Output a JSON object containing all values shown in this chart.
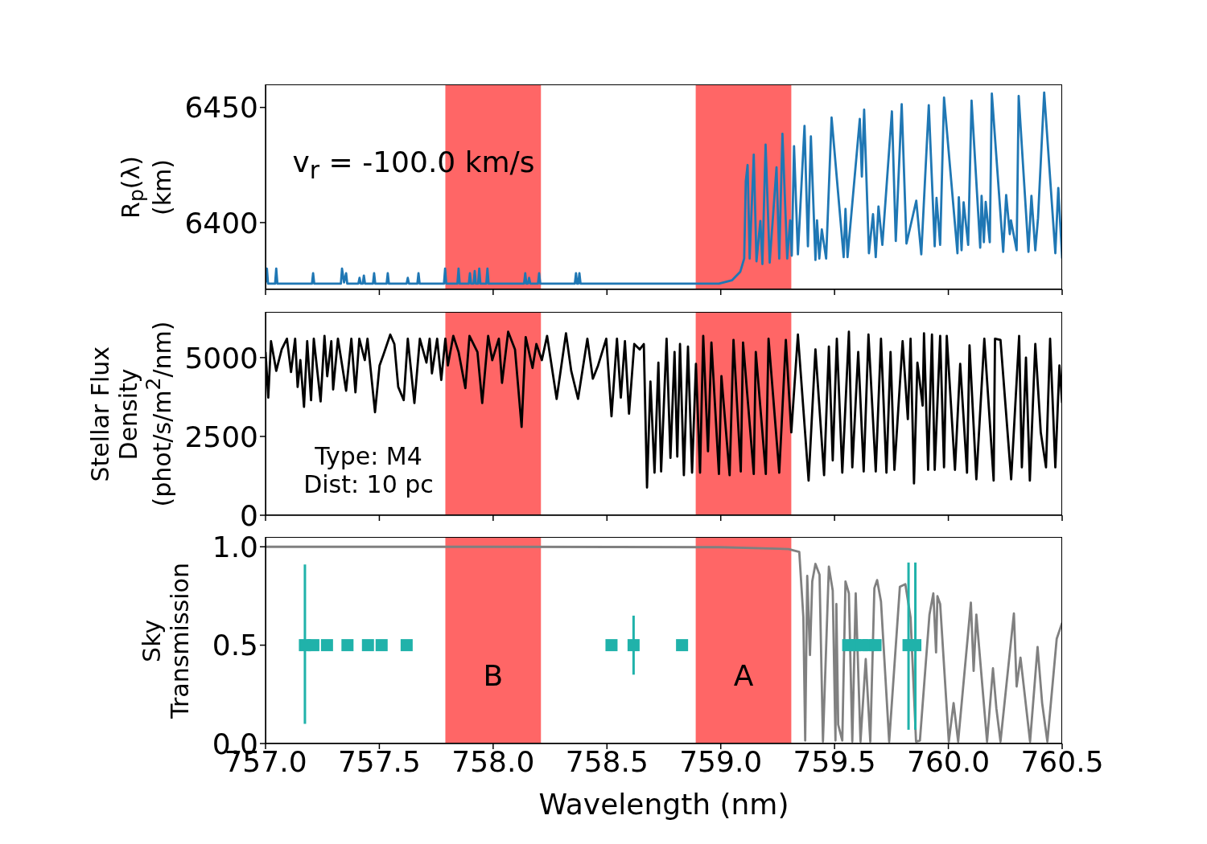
{
  "chart_data": [
    {
      "type": "line",
      "ylabel": "R$_{p}$(λ)\n(km)",
      "annotations": [
        "v$_{r}$ = -100.0 km/s"
      ],
      "xlim": [
        757,
        760.5
      ],
      "xticks": [
        {
          "value": 757,
          "label": null
        },
        {
          "value": 757.5,
          "label": null
        },
        {
          "value": 758,
          "label": null
        },
        {
          "value": 758.5,
          "label": null
        },
        {
          "value": 759,
          "label": null
        },
        {
          "value": 759.5,
          "label": null
        },
        {
          "value": 760,
          "label": null
        },
        {
          "value": 760.5,
          "label": null
        }
      ],
      "ylim": [
        6371,
        6460
      ],
      "yticks": [
        6400,
        6450
      ],
      "tick_labels": "y",
      "bands": [
        {
          "axis": "x",
          "from": 757.79,
          "to": 758.21,
          "color": "#ff6666"
        },
        {
          "axis": "x",
          "from": 758.89,
          "to": 759.31,
          "color": "#ff6666"
        }
      ],
      "series": [
        {
          "color": "#1f77b4",
          "marker": "none",
          "x": [
            757.0,
            757.006,
            757.011,
            757.042,
            757.047,
            757.052,
            757.204,
            757.209,
            757.214,
            757.331,
            757.336,
            757.345,
            757.354,
            757.359,
            757.408,
            757.413,
            757.418,
            757.427,
            757.432,
            757.437,
            757.472,
            757.477,
            757.482,
            757.532,
            757.537,
            757.542,
            757.62,
            757.625,
            757.63,
            757.667,
            757.672,
            757.677,
            757.784,
            757.789,
            757.794,
            757.843,
            757.848,
            757.853,
            757.893,
            757.898,
            757.903,
            757.914,
            757.919,
            757.924,
            757.934,
            757.939,
            757.944,
            757.97,
            757.975,
            757.98,
            758.136,
            758.141,
            758.146,
            758.153,
            758.158,
            758.163,
            758.197,
            758.202,
            758.207,
            758.359,
            758.364,
            758.369,
            758.374,
            758.379,
            758.384,
            758.9,
            758.992,
            759.05,
            759.086,
            759.103,
            759.11,
            759.118,
            759.127,
            759.145,
            759.157,
            759.174,
            759.183,
            759.197,
            759.215,
            759.245,
            759.257,
            759.271,
            759.292,
            759.305,
            759.312,
            759.322,
            759.339,
            759.368,
            759.383,
            759.396,
            759.416,
            759.423,
            759.433,
            759.444,
            759.463,
            759.487,
            759.54,
            759.548,
            759.557,
            759.611,
            759.62,
            759.63,
            759.651,
            759.669,
            759.681,
            759.693,
            759.71,
            759.752,
            759.769,
            759.795,
            759.816,
            759.859,
            759.881,
            759.914,
            759.94,
            759.948,
            759.964,
            759.981,
            760.04,
            760.046,
            760.058,
            760.067,
            760.087,
            760.102,
            760.14,
            760.146,
            760.156,
            760.164,
            760.182,
            760.191,
            760.241,
            760.254,
            760.27,
            760.275,
            760.3,
            760.309,
            760.352,
            760.365,
            760.382,
            760.394,
            760.421,
            760.47,
            760.483,
            760.5
          ],
          "values": [
            6374,
            6380,
            6373.5,
            6373.5,
            6380,
            6373.5,
            6373.5,
            6378,
            6373.5,
            6373.5,
            6380,
            6374,
            6378,
            6373.5,
            6373.5,
            6376,
            6373.5,
            6373.5,
            6377,
            6373.5,
            6373.5,
            6378,
            6373.5,
            6373.5,
            6378,
            6373.5,
            6373.5,
            6376,
            6373.5,
            6373.5,
            6378,
            6373.5,
            6373.5,
            6380,
            6373.5,
            6373.5,
            6380,
            6373.5,
            6373.5,
            6378,
            6373.5,
            6373.5,
            6379,
            6373.5,
            6373.5,
            6380,
            6373.5,
            6373.5,
            6380,
            6373.5,
            6373.5,
            6378,
            6373.5,
            6373.5,
            6376,
            6373.5,
            6373.5,
            6378,
            6373.5,
            6373.5,
            6378,
            6373.5,
            6373.5,
            6378,
            6373.5,
            6373.5,
            6373.5,
            6375,
            6378.7,
            6384.4,
            6418,
            6425,
            6384.4,
            6429.5,
            6383.2,
            6400.7,
            6382,
            6433.9,
            6382.6,
            6424,
            6384.4,
            6438.6,
            6384.4,
            6401,
            6385.6,
            6433.2,
            6386.2,
            6442,
            6389.7,
            6437.4,
            6383.8,
            6401,
            6384.4,
            6397,
            6384.4,
            6445.6,
            6385,
            6405.9,
            6385,
            6445,
            6420,
            6449,
            6386.7,
            6403.7,
            6385,
            6407,
            6390.3,
            6448.3,
            6392,
            6451.4,
            6390.9,
            6409.5,
            6386.2,
            6451,
            6389.7,
            6410.7,
            6390.3,
            6454.3,
            6386.7,
            6411,
            6388,
            6408.8,
            6390.3,
            6453,
            6389.1,
            6411.6,
            6391.5,
            6409,
            6391.5,
            6456,
            6387.3,
            6412,
            6395,
            6401,
            6388,
            6455,
            6387.3,
            6411.6,
            6388,
            6402,
            6456.5,
            6386.7,
            6415,
            6384.4
          ]
        }
      ]
    },
    {
      "type": "line",
      "ylabel": "Stellar Flux\nDensity\n(phot/s/m$^{2}$/nm)",
      "annotations": [
        "Type: M4\nDist: 10 pc"
      ],
      "xlim": [
        757,
        760.5
      ],
      "xticks": [
        {
          "value": 757,
          "label": null
        },
        {
          "value": 757.5,
          "label": null
        },
        {
          "value": 758,
          "label": null
        },
        {
          "value": 758.5,
          "label": null
        },
        {
          "value": 759,
          "label": null
        },
        {
          "value": 759.5,
          "label": null
        },
        {
          "value": 760,
          "label": null
        },
        {
          "value": 760.5,
          "label": null
        }
      ],
      "ylim": [
        0,
        6450
      ],
      "yticks": [
        0,
        2500,
        5000
      ],
      "tick_labels": "y",
      "bands": [
        {
          "axis": "x",
          "from": 757.79,
          "to": 758.21,
          "color": "#ff6666"
        },
        {
          "axis": "x",
          "from": 758.89,
          "to": 759.31,
          "color": "#ff6666"
        }
      ],
      "series": [
        {
          "color": "#000000",
          "marker": "none",
          "x": [
            757.0,
            757.012,
            757.024,
            757.047,
            757.071,
            757.094,
            757.112,
            757.13,
            757.141,
            757.153,
            757.169,
            757.183,
            757.2,
            757.212,
            757.242,
            757.259,
            757.271,
            757.289,
            757.297,
            757.318,
            757.354,
            757.377,
            757.395,
            757.412,
            757.436,
            757.448,
            757.481,
            757.501,
            757.518,
            757.548,
            757.566,
            757.583,
            757.607,
            757.625,
            757.654,
            757.678,
            757.707,
            757.721,
            757.731,
            757.754,
            757.772,
            757.79,
            757.801,
            757.825,
            757.848,
            757.878,
            757.896,
            757.931,
            757.952,
            757.978,
            757.996,
            758.025,
            758.039,
            758.066,
            758.096,
            758.125,
            758.143,
            758.173,
            758.19,
            758.214,
            758.237,
            758.279,
            758.32,
            758.343,
            758.373,
            758.414,
            758.438,
            758.461,
            758.497,
            758.52,
            758.544,
            758.561,
            758.579,
            758.597,
            758.62,
            758.644,
            758.662,
            758.676,
            758.691,
            758.709,
            758.726,
            758.738,
            758.762,
            758.779,
            758.797,
            758.809,
            758.821,
            758.838,
            758.856,
            758.874,
            758.891,
            758.909,
            758.923,
            758.944,
            758.959,
            758.992,
            759.003,
            759.039,
            759.056,
            759.088,
            759.098,
            759.145,
            759.154,
            759.198,
            759.21,
            759.257,
            759.286,
            759.31,
            759.339,
            759.386,
            759.416,
            759.454,
            759.475,
            759.492,
            759.51,
            759.534,
            759.563,
            759.578,
            759.604,
            759.628,
            759.649,
            759.681,
            759.704,
            759.728,
            759.746,
            759.763,
            759.799,
            759.822,
            759.834,
            759.849,
            759.864,
            759.887,
            759.893,
            759.911,
            759.928,
            759.94,
            759.964,
            759.981,
            759.993,
            760.029,
            760.052,
            760.082,
            760.093,
            760.123,
            760.158,
            760.199,
            760.205,
            760.229,
            760.276,
            760.311,
            760.323,
            760.341,
            760.358,
            760.382,
            760.406,
            760.429,
            760.447,
            760.47,
            760.488,
            760.5
          ],
          "values": [
            5180,
            3730,
            5520,
            4580,
            5260,
            5600,
            4540,
            5600,
            4070,
            4920,
            3440,
            5520,
            3650,
            5600,
            3610,
            5690,
            4410,
            5520,
            3990,
            5600,
            3950,
            5600,
            3900,
            5600,
            4920,
            5600,
            3270,
            4750,
            5090,
            5730,
            5430,
            4070,
            3650,
            5600,
            3560,
            5600,
            4840,
            5600,
            4500,
            5600,
            4290,
            5600,
            4750,
            5690,
            5180,
            4030,
            5690,
            5180,
            3560,
            5690,
            4920,
            5600,
            4200,
            5820,
            5260,
            2800,
            5650,
            4670,
            5430,
            4920,
            5690,
            3690,
            5770,
            4580,
            3690,
            5600,
            4330,
            4750,
            5600,
            3140,
            5600,
            3730,
            5520,
            3220,
            5430,
            5260,
            5430,
            880,
            4240,
            1350,
            4840,
            1390,
            5600,
            1820,
            5180,
            1860,
            5430,
            1270,
            5350,
            1350,
            4800,
            1350,
            5690,
            2030,
            5480,
            1310,
            4410,
            1270,
            5560,
            1390,
            5480,
            1310,
            5180,
            1310,
            5600,
            1350,
            5560,
            2630,
            5730,
            1100,
            5260,
            1270,
            5350,
            1740,
            5600,
            1350,
            5820,
            1520,
            5180,
            1390,
            5730,
            1390,
            5600,
            1350,
            5180,
            1440,
            5520,
            3050,
            5600,
            1010,
            4840,
            3480,
            5770,
            1440,
            5730,
            1440,
            5690,
            1520,
            5690,
            1440,
            4800,
            1350,
            5390,
            1140,
            5600,
            1100,
            5600,
            5560,
            1140,
            5690,
            1520,
            5000,
            1100,
            5430,
            2630,
            1520,
            5600,
            1520,
            4750,
            3560
          ]
        }
      ]
    },
    {
      "type": "line",
      "xlabel": "Wavelength (nm)",
      "ylabel": "Sky\nTransmission",
      "xlim": [
        757,
        760.5
      ],
      "xticks": [
        {
          "value": 757,
          "label": "757.0"
        },
        {
          "value": 757.5,
          "label": "757.5"
        },
        {
          "value": 758,
          "label": "758.0"
        },
        {
          "value": 758.5,
          "label": "758.5"
        },
        {
          "value": 759,
          "label": "759.0"
        },
        {
          "value": 759.5,
          "label": "759.5"
        },
        {
          "value": 760,
          "label": "760.0"
        },
        {
          "value": 760.5,
          "label": "760.5"
        }
      ],
      "ylim": [
        0,
        1.05
      ],
      "yticks": [
        {
          "value": 0,
          "label": "0.0"
        },
        {
          "value": 0.5,
          "label": "0.5"
        },
        {
          "value": 1,
          "label": "1.0"
        }
      ],
      "bands": [
        {
          "axis": "x",
          "from": 757.79,
          "to": 758.21,
          "color": "#ff6666",
          "label": "B"
        },
        {
          "axis": "x",
          "from": 758.89,
          "to": 759.31,
          "color": "#ff6666",
          "label": "A"
        }
      ],
      "series": [
        {
          "color": "#808080",
          "marker": "none",
          "x": [
            757.0,
            758.0,
            759.0,
            759.25,
            759.298,
            759.345,
            759.363,
            759.371,
            759.38,
            759.392,
            759.402,
            759.416,
            759.434,
            759.449,
            759.475,
            759.492,
            759.504,
            759.508,
            759.516,
            759.534,
            759.548,
            759.563,
            759.578,
            759.593,
            759.614,
            759.637,
            759.657,
            759.675,
            759.687,
            759.704,
            759.74,
            759.787,
            759.811,
            759.834,
            759.858,
            759.875,
            759.917,
            759.934,
            759.946,
            759.952,
            759.964,
            760.002,
            760.023,
            760.043,
            760.099,
            760.111,
            760.123,
            760.17,
            760.196,
            760.211,
            760.229,
            760.288,
            760.3,
            760.317,
            760.359,
            760.392,
            760.412,
            760.435,
            760.476,
            760.5
          ],
          "values": [
            1.0,
            1.0,
            0.998,
            0.99,
            0.988,
            0.974,
            0.641,
            0.015,
            0.852,
            0.45,
            0.824,
            0.913,
            0.858,
            0.01,
            0.899,
            0.777,
            0.015,
            0.709,
            0.096,
            0.015,
            0.824,
            0.763,
            0.01,
            0.763,
            0.01,
            0.429,
            0.01,
            0.79,
            0.831,
            0.722,
            0.01,
            0.797,
            0.81,
            0.641,
            0.01,
            0.015,
            0.655,
            0.763,
            0.463,
            0.749,
            0.709,
            0.01,
            0.206,
            0.01,
            0.716,
            0.369,
            0.655,
            0.01,
            0.382,
            0.178,
            0.01,
            0.661,
            0.29,
            0.437,
            0.01,
            0.491,
            0.206,
            0.01,
            0.532,
            0.614
          ]
        },
        {
          "type": "scatter",
          "color": "#20b2aa",
          "marker": "square",
          "x": [
            757.173,
            757.21,
            757.27,
            757.36,
            757.45,
            757.51,
            757.62,
            758.52,
            758.617,
            758.83,
            759.56,
            759.59,
            759.62,
            759.65,
            759.68,
            759.825,
            759.855
          ],
          "values": [
            0.5,
            0.5,
            0.5,
            0.5,
            0.5,
            0.5,
            0.5,
            0.5,
            0.5,
            0.5,
            0.5,
            0.5,
            0.5,
            0.5,
            0.5,
            0.5,
            0.5
          ],
          "errors": [
            [
              0.1,
              0.91
            ],
            null,
            null,
            null,
            null,
            null,
            null,
            null,
            [
              0.35,
              0.65
            ],
            null,
            null,
            null,
            null,
            null,
            null,
            [
              0.07,
              0.92
            ],
            [
              0.07,
              0.92
            ]
          ]
        }
      ]
    }
  ]
}
